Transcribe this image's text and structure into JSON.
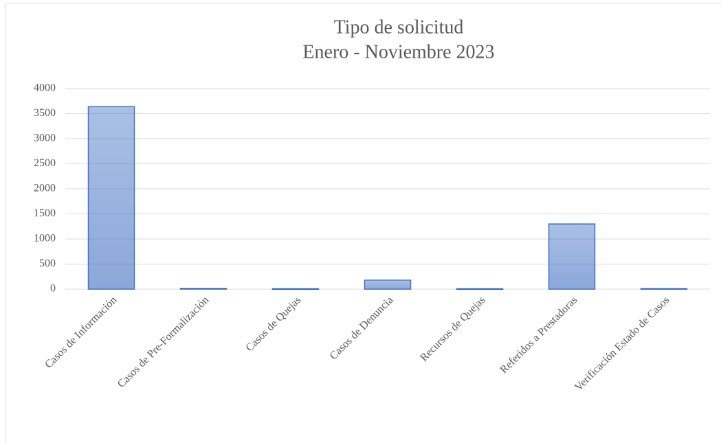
{
  "chart_data": {
    "type": "bar",
    "title": "Tipo de solicitud",
    "subtitle": "Enero - Noviembre 2023",
    "categories": [
      "Casos de Información",
      "Casos de Pre-Formalización",
      "Casos de Quejas",
      "Casos de Denuncia",
      "Recursos de Quejas",
      "Referidos a Prestadoras",
      "Verificación Estado de Casos"
    ],
    "values": [
      3640,
      15,
      10,
      180,
      10,
      1300,
      12
    ],
    "color": "#4472c4",
    "ylim": [
      0,
      4000
    ],
    "yticks": [
      0,
      500,
      1000,
      1500,
      2000,
      2500,
      3000,
      3500,
      4000
    ],
    "grid": true
  }
}
